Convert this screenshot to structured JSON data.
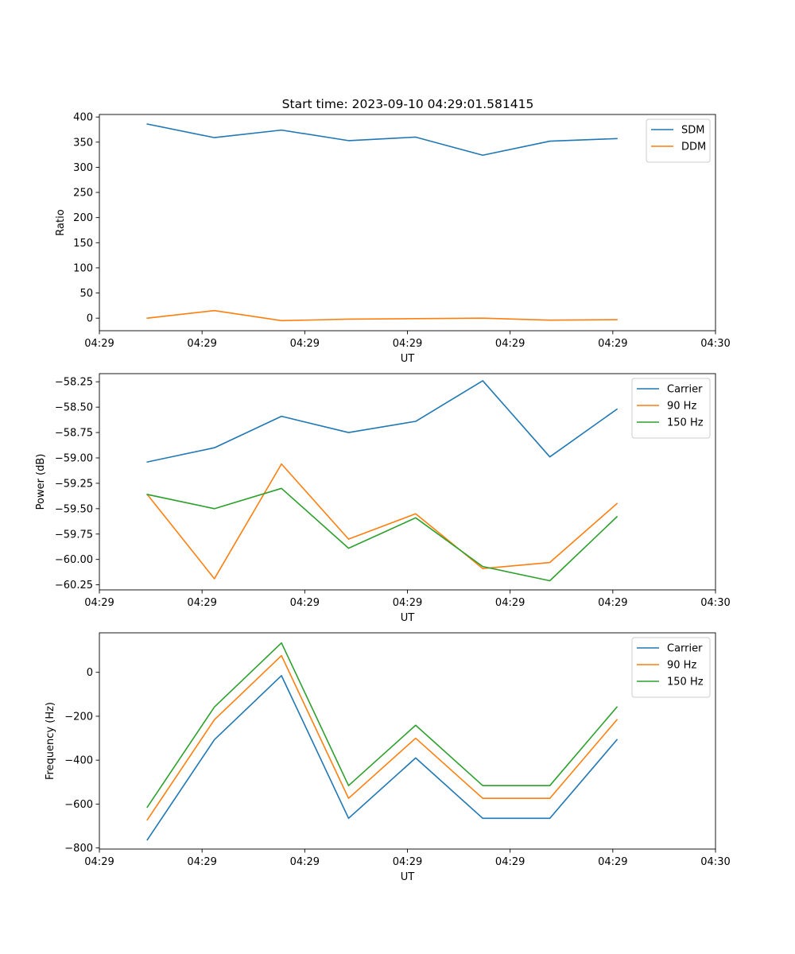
{
  "figure_title": "Start time: 2023-09-10 04:29:01.581415",
  "chart_data": [
    {
      "type": "line",
      "ylabel": "Ratio",
      "xlabel": "UT",
      "xlim": [
        0,
        9
      ],
      "xticks": [
        0,
        1.5,
        3,
        4.5,
        6,
        7.5,
        9
      ],
      "xtick_labels": [
        "04:29",
        "04:29",
        "04:29",
        "04:29",
        "04:29",
        "04:29",
        "04:30"
      ],
      "ylim": [
        -25,
        405
      ],
      "yticks": [
        0,
        50,
        100,
        150,
        200,
        250,
        300,
        350,
        400
      ],
      "ytick_labels": [
        "0",
        "50",
        "100",
        "150",
        "200",
        "250",
        "300",
        "350",
        "400"
      ],
      "x": [
        0.7,
        1.68,
        2.66,
        3.64,
        4.62,
        5.6,
        6.58,
        7.56
      ],
      "legend_position": "top-right",
      "series": [
        {
          "name": "SDM",
          "color": "#1f77b4",
          "values": [
            386,
            359,
            374,
            353,
            360,
            324,
            352,
            357
          ]
        },
        {
          "name": "DDM",
          "color": "#ff7f0e",
          "values": [
            0,
            15,
            -5,
            -2,
            -1,
            0,
            -4,
            -3
          ]
        }
      ]
    },
    {
      "type": "line",
      "ylabel": "Power (dB)",
      "xlabel": "UT",
      "xlim": [
        0,
        9
      ],
      "xticks": [
        0,
        1.5,
        3,
        4.5,
        6,
        7.5,
        9
      ],
      "xtick_labels": [
        "04:29",
        "04:29",
        "04:29",
        "04:29",
        "04:29",
        "04:29",
        "04:30"
      ],
      "ylim": [
        -60.3,
        -58.17
      ],
      "yticks": [
        -60.25,
        -60.0,
        -59.75,
        -59.5,
        -59.25,
        -59.0,
        -58.75,
        -58.5,
        -58.25
      ],
      "ytick_labels": [
        "−60.25",
        "−60.00",
        "−59.75",
        "−59.50",
        "−59.25",
        "−59.00",
        "−58.75",
        "−58.50",
        "−58.25"
      ],
      "x": [
        0.7,
        1.68,
        2.66,
        3.64,
        4.62,
        5.6,
        6.58,
        7.56
      ],
      "legend_position": "top-right",
      "series": [
        {
          "name": "Carrier",
          "color": "#1f77b4",
          "values": [
            -59.04,
            -58.9,
            -58.59,
            -58.75,
            -58.64,
            -58.24,
            -58.99,
            -58.52
          ]
        },
        {
          "name": "90 Hz",
          "color": "#ff7f0e",
          "values": [
            -59.36,
            -60.19,
            -59.06,
            -59.8,
            -59.55,
            -60.09,
            -60.03,
            -59.45
          ]
        },
        {
          "name": "150 Hz",
          "color": "#2ca02c",
          "values": [
            -59.36,
            -59.5,
            -59.3,
            -59.89,
            -59.59,
            -60.07,
            -60.21,
            -59.58
          ]
        }
      ]
    },
    {
      "type": "line",
      "ylabel": "Frequency (Hz)",
      "xlabel": "UT",
      "xlim": [
        0,
        9
      ],
      "xticks": [
        0,
        1.5,
        3,
        4.5,
        6,
        7.5,
        9
      ],
      "xtick_labels": [
        "04:29",
        "04:29",
        "04:29",
        "04:29",
        "04:29",
        "04:29",
        "04:30"
      ],
      "ylim": [
        -805,
        180
      ],
      "yticks": [
        -800,
        -600,
        -400,
        -200,
        0
      ],
      "ytick_labels": [
        "−800",
        "−600",
        "−400",
        "−200",
        "0"
      ],
      "x": [
        0.7,
        1.68,
        2.66,
        3.64,
        4.62,
        5.6,
        6.58,
        7.56
      ],
      "legend_position": "top-right",
      "series": [
        {
          "name": "Carrier",
          "color": "#1f77b4",
          "values": [
            -763,
            -307,
            -15,
            -665,
            -390,
            -665,
            -665,
            -307
          ]
        },
        {
          "name": "90 Hz",
          "color": "#ff7f0e",
          "values": [
            -672,
            -216,
            76,
            -574,
            -300,
            -574,
            -574,
            -216
          ]
        },
        {
          "name": "150 Hz",
          "color": "#2ca02c",
          "values": [
            -614,
            -158,
            134,
            -516,
            -241,
            -516,
            -516,
            -158
          ]
        }
      ]
    }
  ]
}
